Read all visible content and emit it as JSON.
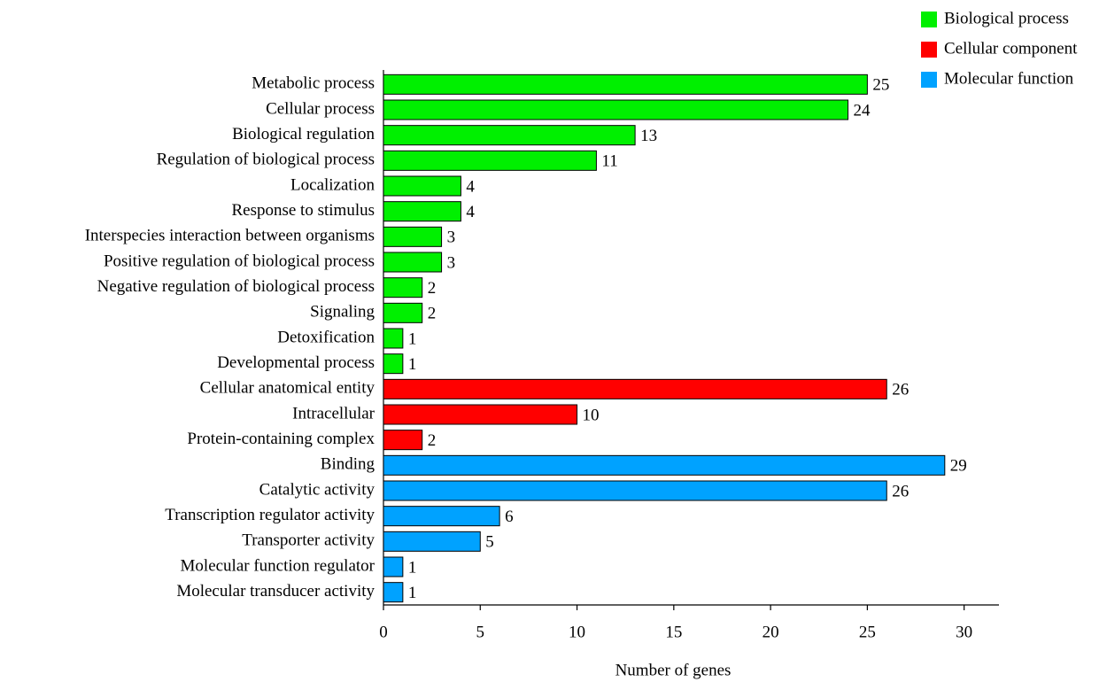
{
  "chart_data": {
    "type": "bar",
    "orientation": "horizontal",
    "x_axis_label": "Number of genes",
    "categories": [
      "Metabolic process",
      "Cellular process",
      "Biological regulation",
      "Regulation of biological process",
      "Localization",
      "Response to stimulus",
      "Interspecies interaction between organisms",
      "Positive regulation of biological process",
      "Negative regulation of biological process",
      "Signaling",
      "Detoxification",
      "Developmental process",
      "Cellular anatomical entity",
      "Intracellular",
      "Protein-containing complex",
      "Binding",
      "Catalytic activity",
      "Transcription regulator activity",
      "Transporter activity",
      "Molecular function regulator",
      "Molecular transducer activity"
    ],
    "series": [
      {
        "name": "Biological process",
        "color": "#00f000",
        "values": [
          25,
          24,
          13,
          11,
          4,
          4,
          3,
          3,
          2,
          2,
          1,
          1,
          null,
          null,
          null,
          null,
          null,
          null,
          null,
          null,
          null
        ]
      },
      {
        "name": "Cellular component",
        "color": "#ff0000",
        "values": [
          null,
          null,
          null,
          null,
          null,
          null,
          null,
          null,
          null,
          null,
          null,
          null,
          26,
          10,
          2,
          null,
          null,
          null,
          null,
          null,
          null
        ]
      },
      {
        "name": "Molecular function",
        "color": "#00a2ff",
        "values": [
          null,
          null,
          null,
          null,
          null,
          null,
          null,
          null,
          null,
          null,
          null,
          null,
          null,
          null,
          null,
          29,
          26,
          6,
          5,
          1,
          1
        ]
      }
    ],
    "xlim": [
      0,
      31.8
    ],
    "xticks": [
      0,
      5,
      10,
      15,
      20,
      25,
      30
    ],
    "legend": "top-right"
  }
}
